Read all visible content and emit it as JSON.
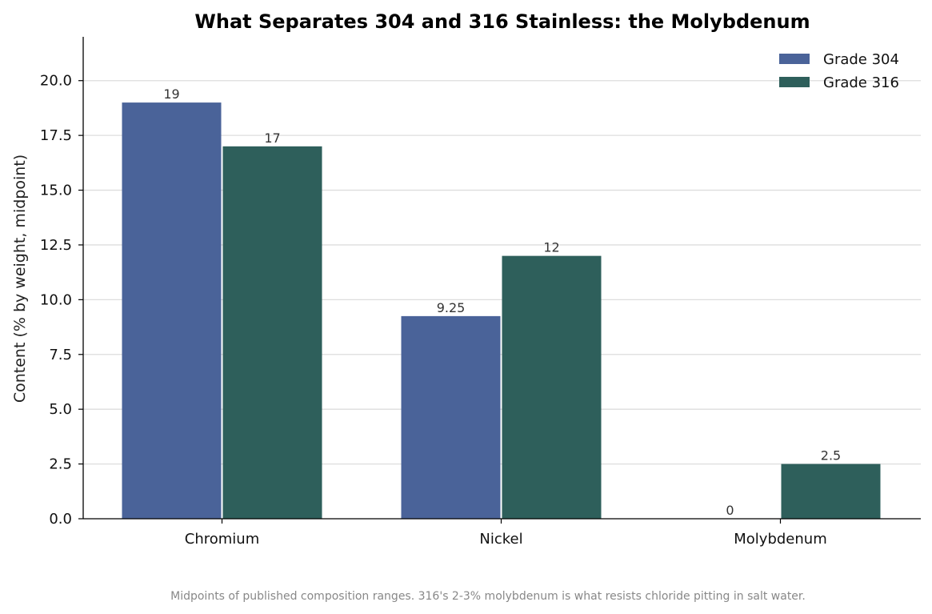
{
  "chart_data": {
    "type": "bar",
    "title": "What Separates 304 and 316 Stainless: the Molybdenum",
    "xlabel": "",
    "ylabel": "Content (% by weight, midpoint)",
    "categories": [
      "Chromium",
      "Nickel",
      "Molybdenum"
    ],
    "series": [
      {
        "name": "Grade 304",
        "values": [
          19,
          9.25,
          0
        ],
        "labels": [
          "19",
          "9.25",
          "0"
        ],
        "color": "#4a6399"
      },
      {
        "name": "Grade 316",
        "values": [
          17,
          12,
          2.5
        ],
        "labels": [
          "17",
          "12",
          "2.5"
        ],
        "color": "#2e5f5b"
      }
    ],
    "ylim": [
      0,
      22
    ],
    "yticks": [
      "0.0",
      "2.5",
      "5.0",
      "7.5",
      "10.0",
      "12.5",
      "15.0",
      "17.5",
      "20.0"
    ],
    "grid": "horizontal",
    "legend_position": "top-right",
    "caption": "Midpoints of published composition ranges. 316's 2-3% molybdenum is what resists chloride pitting in salt water."
  }
}
